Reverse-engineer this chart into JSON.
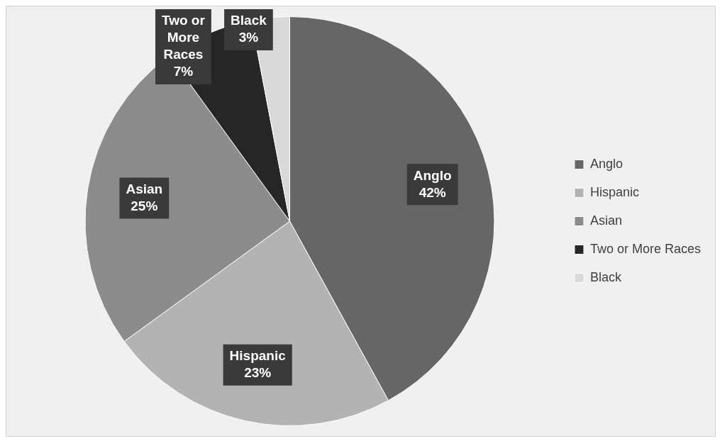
{
  "chart_data": {
    "type": "pie",
    "categories": [
      "Anglo",
      "Hispanic",
      "Asian",
      "Two or More Races",
      "Black"
    ],
    "values": [
      42,
      23,
      25,
      7,
      3
    ],
    "value_labels": [
      "42%",
      "23%",
      "25%",
      "7%",
      "3%"
    ],
    "colors": [
      "#666666",
      "#b3b3b3",
      "#8c8c8c",
      "#262626",
      "#d9d9d9"
    ],
    "legend": "right"
  }
}
